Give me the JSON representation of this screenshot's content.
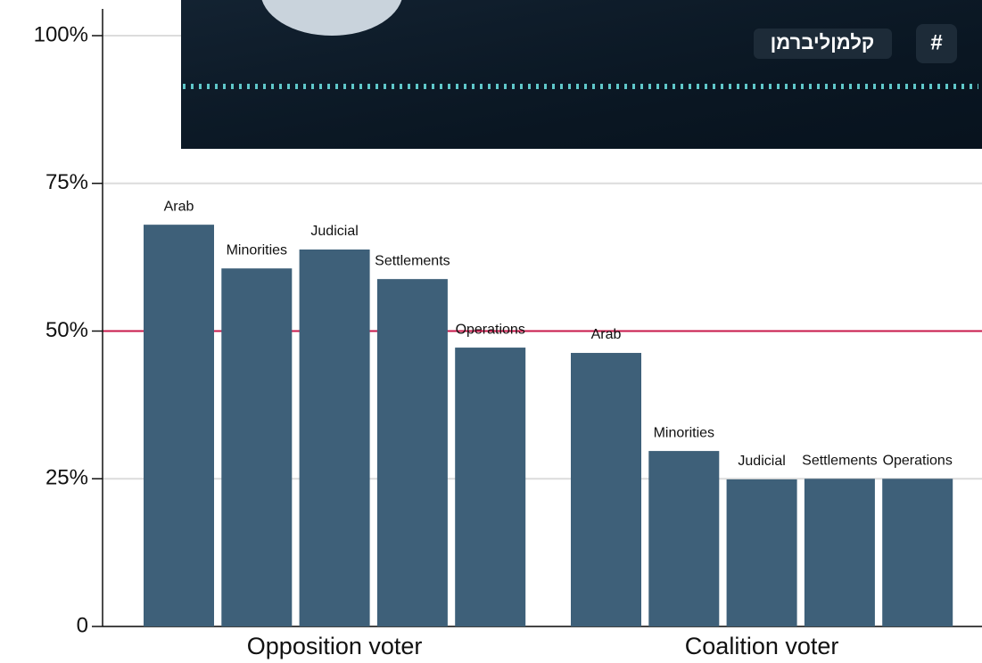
{
  "chart_data": {
    "type": "bar",
    "categories": [
      "Opposition voter",
      "Coalition voter"
    ],
    "series": [
      {
        "name": "Arab",
        "color": "#3e6079",
        "values": [
          68.0,
          46.3
        ]
      },
      {
        "name": "Minorities",
        "color": "#3e6079",
        "values": [
          60.6,
          29.7
        ]
      },
      {
        "name": "Judicial",
        "color": "#3e6079",
        "values": [
          63.8,
          24.9
        ]
      },
      {
        "name": "Settlements",
        "color": "#3e6079",
        "values": [
          58.8,
          25.0
        ]
      },
      {
        "name": "Operations",
        "color": "#3e6079",
        "values": [
          47.2,
          25.0
        ]
      }
    ],
    "ylim": [
      0,
      100
    ],
    "yticks": [
      0,
      {
        "value": 25,
        "label": "25%"
      },
      {
        "value": 50,
        "label": "50%"
      },
      {
        "value": 75,
        "label": "75%"
      },
      {
        "value": 100,
        "label": "100%"
      }
    ],
    "grid": true,
    "reference_line": {
      "value": 50,
      "color": "#c8174a"
    }
  },
  "overlay": {
    "hashtag": "#",
    "tag": "קלמןליברמן"
  }
}
